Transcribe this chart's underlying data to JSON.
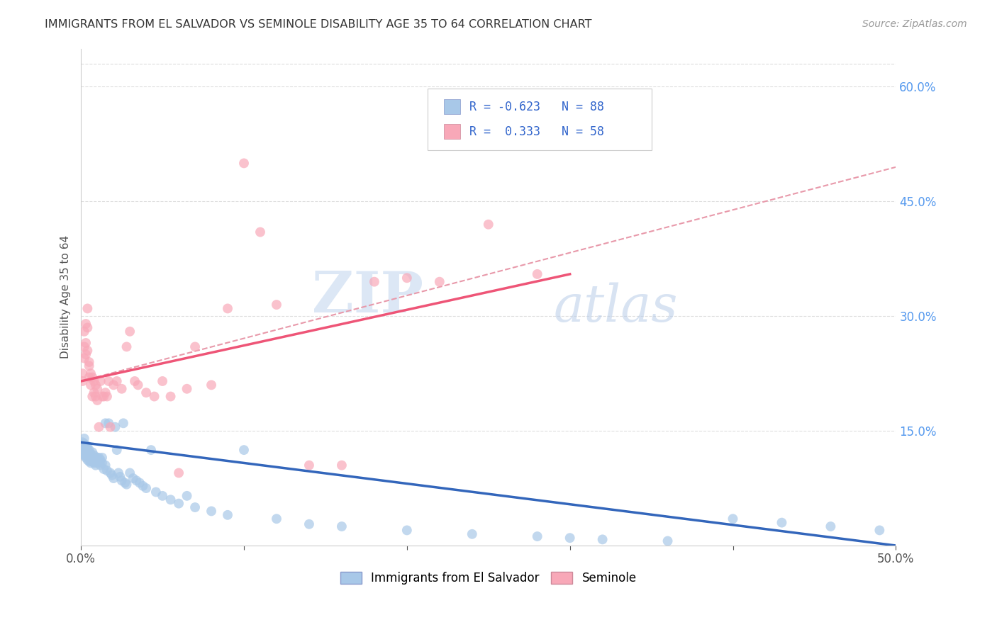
{
  "title": "IMMIGRANTS FROM EL SALVADOR VS SEMINOLE DISABILITY AGE 35 TO 64 CORRELATION CHART",
  "source": "Source: ZipAtlas.com",
  "ylabel": "Disability Age 35 to 64",
  "x_min": 0.0,
  "x_max": 0.5,
  "y_min": 0.0,
  "y_max": 0.65,
  "x_ticks": [
    0.0,
    0.1,
    0.2,
    0.3,
    0.4,
    0.5
  ],
  "x_tick_labels": [
    "0.0%",
    "",
    "",
    "",
    "",
    "50.0%"
  ],
  "y_ticks_right": [
    0.15,
    0.3,
    0.45,
    0.6
  ],
  "y_tick_labels_right": [
    "15.0%",
    "30.0%",
    "45.0%",
    "60.0%"
  ],
  "legend_labels": [
    "Immigrants from El Salvador",
    "Seminole"
  ],
  "blue_R": "-0.623",
  "blue_N": "88",
  "pink_R": "0.333",
  "pink_N": "58",
  "blue_color": "#a8c8e8",
  "pink_color": "#f8a8b8",
  "blue_line_color": "#3366bb",
  "pink_line_color": "#ee5577",
  "dashed_line_color": "#e899aa",
  "watermark_zip": "ZIP",
  "watermark_atlas": "atlas",
  "background_color": "#ffffff",
  "grid_color": "#dddddd",
  "blue_scatter_x": [
    0.001,
    0.001,
    0.001,
    0.002,
    0.002,
    0.002,
    0.002,
    0.002,
    0.003,
    0.003,
    0.003,
    0.003,
    0.003,
    0.004,
    0.004,
    0.004,
    0.004,
    0.004,
    0.005,
    0.005,
    0.005,
    0.005,
    0.006,
    0.006,
    0.006,
    0.006,
    0.007,
    0.007,
    0.007,
    0.008,
    0.008,
    0.008,
    0.009,
    0.009,
    0.009,
    0.01,
    0.01,
    0.011,
    0.011,
    0.012,
    0.012,
    0.013,
    0.013,
    0.014,
    0.015,
    0.015,
    0.016,
    0.017,
    0.018,
    0.019,
    0.02,
    0.021,
    0.022,
    0.023,
    0.024,
    0.025,
    0.026,
    0.027,
    0.028,
    0.03,
    0.032,
    0.034,
    0.036,
    0.038,
    0.04,
    0.043,
    0.046,
    0.05,
    0.055,
    0.06,
    0.065,
    0.07,
    0.08,
    0.09,
    0.1,
    0.12,
    0.14,
    0.16,
    0.2,
    0.24,
    0.28,
    0.3,
    0.32,
    0.36,
    0.4,
    0.43,
    0.46,
    0.49
  ],
  "blue_scatter_y": [
    0.135,
    0.128,
    0.12,
    0.133,
    0.125,
    0.118,
    0.128,
    0.14,
    0.122,
    0.13,
    0.115,
    0.125,
    0.118,
    0.12,
    0.112,
    0.125,
    0.118,
    0.13,
    0.115,
    0.122,
    0.11,
    0.125,
    0.118,
    0.112,
    0.12,
    0.108,
    0.115,
    0.11,
    0.122,
    0.108,
    0.115,
    0.118,
    0.11,
    0.105,
    0.112,
    0.115,
    0.108,
    0.115,
    0.11,
    0.112,
    0.105,
    0.115,
    0.108,
    0.1,
    0.16,
    0.105,
    0.098,
    0.16,
    0.095,
    0.092,
    0.088,
    0.155,
    0.125,
    0.095,
    0.09,
    0.085,
    0.16,
    0.082,
    0.08,
    0.095,
    0.088,
    0.085,
    0.082,
    0.078,
    0.075,
    0.125,
    0.07,
    0.065,
    0.06,
    0.055,
    0.065,
    0.05,
    0.045,
    0.04,
    0.125,
    0.035,
    0.028,
    0.025,
    0.02,
    0.015,
    0.012,
    0.01,
    0.008,
    0.006,
    0.035,
    0.03,
    0.025,
    0.02
  ],
  "pink_scatter_x": [
    0.001,
    0.001,
    0.002,
    0.002,
    0.002,
    0.003,
    0.003,
    0.003,
    0.004,
    0.004,
    0.004,
    0.005,
    0.005,
    0.005,
    0.006,
    0.006,
    0.007,
    0.007,
    0.008,
    0.008,
    0.009,
    0.009,
    0.01,
    0.01,
    0.011,
    0.012,
    0.013,
    0.014,
    0.015,
    0.016,
    0.017,
    0.018,
    0.02,
    0.022,
    0.025,
    0.028,
    0.03,
    0.033,
    0.035,
    0.04,
    0.045,
    0.05,
    0.055,
    0.06,
    0.065,
    0.07,
    0.08,
    0.09,
    0.1,
    0.11,
    0.12,
    0.14,
    0.16,
    0.18,
    0.2,
    0.22,
    0.25,
    0.28
  ],
  "pink_scatter_y": [
    0.215,
    0.225,
    0.28,
    0.26,
    0.245,
    0.29,
    0.265,
    0.25,
    0.31,
    0.285,
    0.255,
    0.24,
    0.235,
    0.22,
    0.225,
    0.21,
    0.22,
    0.195,
    0.215,
    0.2,
    0.195,
    0.21,
    0.205,
    0.19,
    0.155,
    0.215,
    0.195,
    0.195,
    0.2,
    0.195,
    0.215,
    0.155,
    0.21,
    0.215,
    0.205,
    0.26,
    0.28,
    0.215,
    0.21,
    0.2,
    0.195,
    0.215,
    0.195,
    0.095,
    0.205,
    0.26,
    0.21,
    0.31,
    0.5,
    0.41,
    0.315,
    0.105,
    0.105,
    0.345,
    0.35,
    0.345,
    0.42,
    0.355
  ],
  "blue_line_x": [
    0.0,
    0.5
  ],
  "blue_line_y": [
    0.135,
    0.0
  ],
  "pink_line_x": [
    0.0,
    0.3
  ],
  "pink_line_y": [
    0.215,
    0.355
  ],
  "dashed_line_x": [
    0.0,
    0.5
  ],
  "dashed_line_y": [
    0.215,
    0.495
  ]
}
